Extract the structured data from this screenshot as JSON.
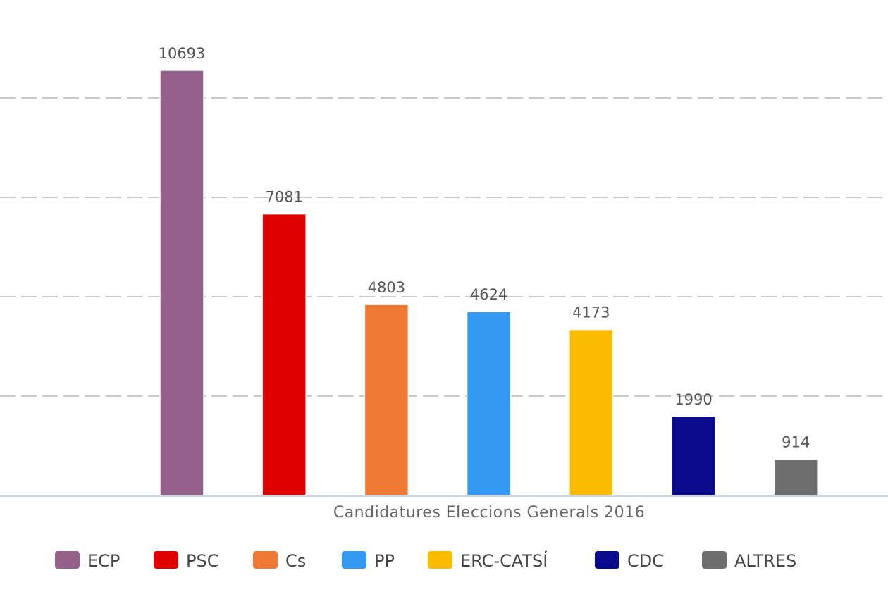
{
  "chart_data": {
    "type": "bar",
    "title": "",
    "xlabel": "Candidatures Eleccions Generals 2016",
    "ylabel": "",
    "ylim": [
      0,
      12500
    ],
    "grid": true,
    "gridlines": [
      2500,
      5000,
      7500,
      10000,
      12500
    ],
    "legend_position": "bottom",
    "series": [
      {
        "name": "ECP",
        "value": 10693,
        "color": "#94618a"
      },
      {
        "name": "PSC",
        "value": 7081,
        "color": "#e00000"
      },
      {
        "name": "Cs",
        "value": 4803,
        "color": "#ef7a36"
      },
      {
        "name": "PP",
        "value": 4624,
        "color": "#3399f3"
      },
      {
        "name": "ERC-CATSÍ",
        "value": 4173,
        "color": "#fdbb00"
      },
      {
        "name": "CDC",
        "value": 1990,
        "color": "#0a0a8c"
      },
      {
        "name": "ALTRES",
        "value": 914,
        "color": "#6e6e6e"
      }
    ]
  }
}
